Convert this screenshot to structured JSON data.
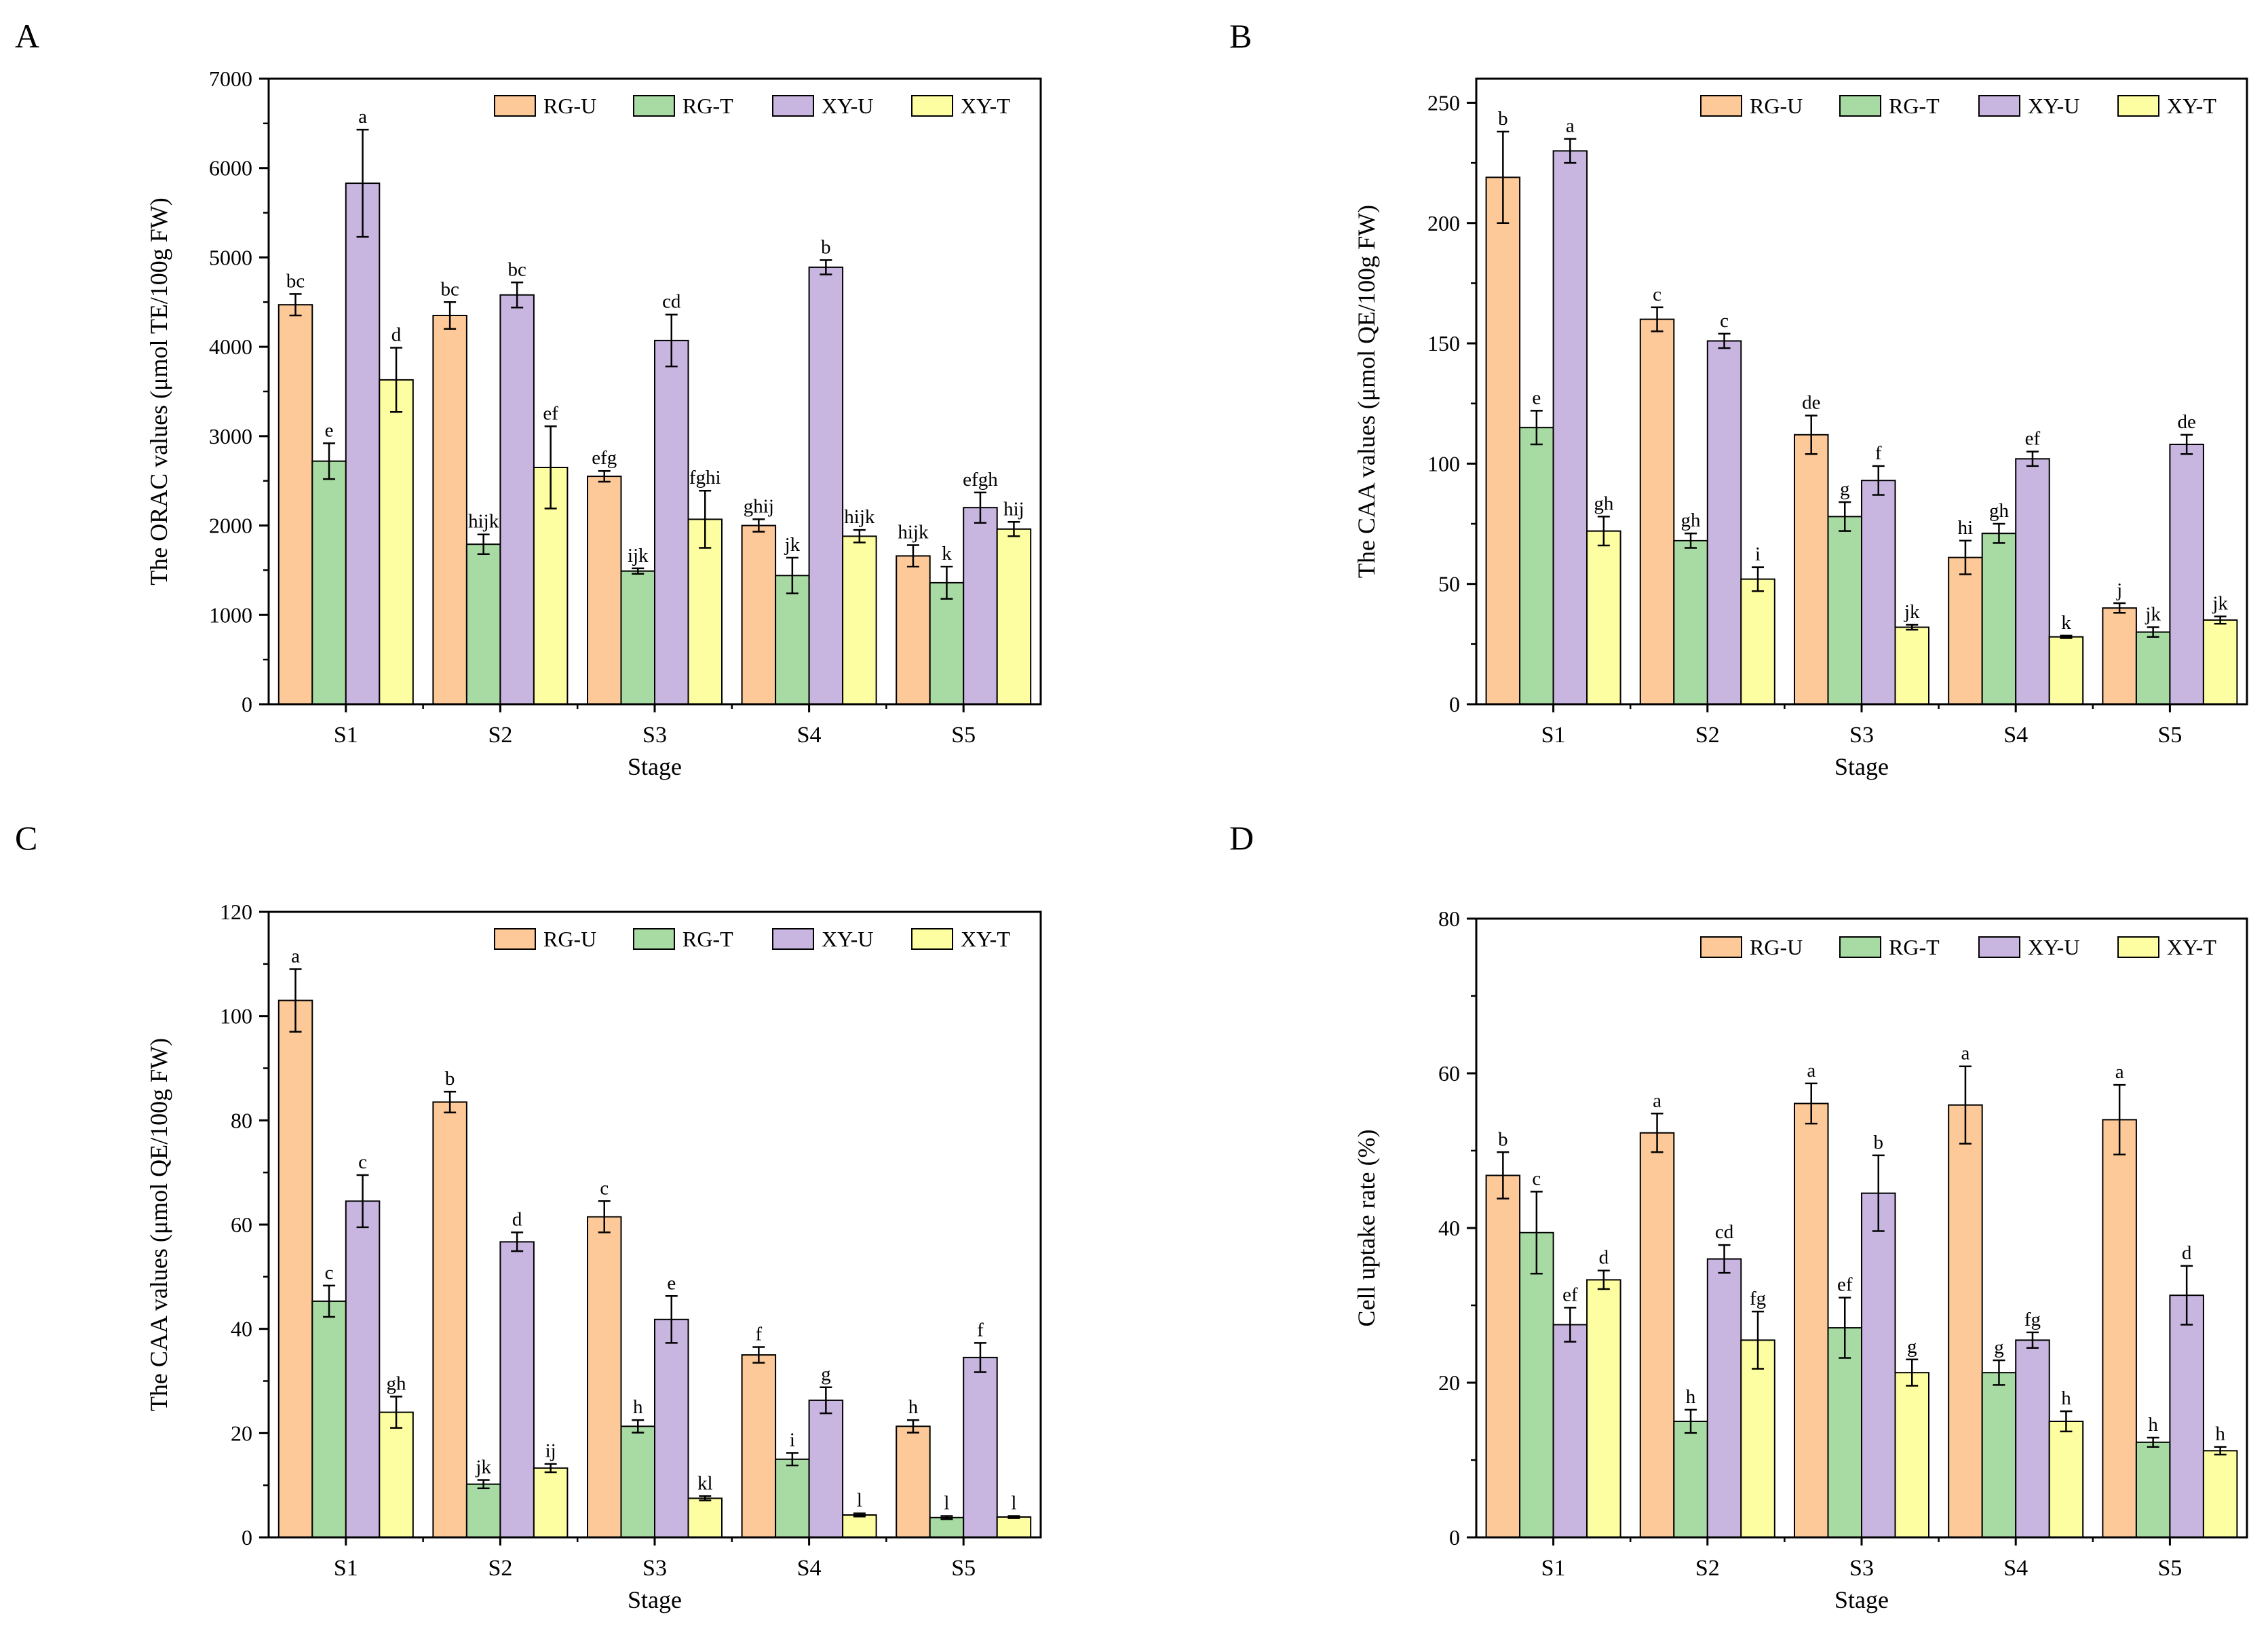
{
  "colors": {
    "RG-U": "#FDC998",
    "RG-T": "#A8DBA4",
    "XY-U": "#C8B6E1",
    "XY-T": "#FDFDA1",
    "bar_stroke": "#000000"
  },
  "panels": [
    {
      "letter": "A",
      "chart_data": {
        "type": "bar",
        "title": "",
        "xlabel": "Stage",
        "ylabel": "The ORAC values (μmol TE/100g FW)",
        "ylim": [
          0,
          7000
        ],
        "yticks": [
          0,
          1000,
          2000,
          3000,
          4000,
          5000,
          6000,
          7000
        ],
        "categories": [
          "S1",
          "S2",
          "S3",
          "S4",
          "S5"
        ],
        "legend_position": "top-right",
        "series": [
          {
            "name": "RG-U",
            "values": [
              4470,
              4350,
              2550,
              2000,
              1660
            ],
            "errors": [
              120,
              150,
              60,
              70,
              120
            ],
            "letters": [
              "bc",
              "bc",
              "efg",
              "ghij",
              "hijk"
            ]
          },
          {
            "name": "RG-T",
            "values": [
              2720,
              1790,
              1490,
              1440,
              1360
            ],
            "errors": [
              200,
              110,
              30,
              200,
              180
            ],
            "letters": [
              "e",
              "hijk",
              "ijk",
              "jk",
              "k"
            ]
          },
          {
            "name": "XY-U",
            "values": [
              5830,
              4580,
              4070,
              4890,
              2200
            ],
            "errors": [
              600,
              140,
              290,
              80,
              170
            ],
            "letters": [
              "a",
              "bc",
              "cd",
              "b",
              "efgh"
            ]
          },
          {
            "name": "XY-T",
            "values": [
              3630,
              2650,
              2070,
              1880,
              1960
            ],
            "errors": [
              360,
              460,
              320,
              70,
              80
            ],
            "letters": [
              "d",
              "ef",
              "fghi",
              "hijk",
              "hij"
            ]
          }
        ]
      }
    },
    {
      "letter": "B",
      "chart_data": {
        "type": "bar",
        "title": "",
        "xlabel": "Stage",
        "ylabel": "The CAA values (μmol QE/100g FW)",
        "ylim": [
          0,
          260
        ],
        "yticks": [
          0,
          50,
          100,
          150,
          200,
          250
        ],
        "categories": [
          "S1",
          "S2",
          "S3",
          "S4",
          "S5"
        ],
        "legend_position": "top-right",
        "series": [
          {
            "name": "RG-U",
            "values": [
              219,
              160,
              112,
              61,
              40
            ],
            "errors": [
              19,
              5,
              8,
              7,
              2
            ],
            "letters": [
              "b",
              "c",
              "de",
              "hi",
              "j"
            ]
          },
          {
            "name": "RG-T",
            "values": [
              115,
              68,
              78,
              71,
              30
            ],
            "errors": [
              7,
              3,
              6,
              4,
              2
            ],
            "letters": [
              "e",
              "gh",
              "g",
              "gh",
              "jk"
            ]
          },
          {
            "name": "XY-U",
            "values": [
              230,
              151,
              93,
              102,
              108
            ],
            "errors": [
              5,
              3,
              6,
              3,
              4
            ],
            "letters": [
              "a",
              "c",
              "f",
              "ef",
              "de"
            ]
          },
          {
            "name": "XY-T",
            "values": [
              72,
              52,
              32,
              28,
              35
            ],
            "errors": [
              6,
              5,
              1,
              0.5,
              1.5
            ],
            "letters": [
              "gh",
              "i",
              "jk",
              "k",
              "jk"
            ]
          }
        ]
      }
    },
    {
      "letter": "C",
      "chart_data": {
        "type": "bar",
        "title": "",
        "xlabel": "Stage",
        "ylabel": "The CAA values (μmol QE/100g FW)",
        "ylim": [
          0,
          120
        ],
        "yticks": [
          0,
          20,
          40,
          60,
          80,
          100,
          120
        ],
        "categories": [
          "S1",
          "S2",
          "S3",
          "S4",
          "S5"
        ],
        "legend_position": "top-right",
        "series": [
          {
            "name": "RG-U",
            "values": [
              103,
              83.5,
              61.5,
              35,
              21.3
            ],
            "errors": [
              6,
              2,
              3,
              1.5,
              1.2
            ],
            "letters": [
              "a",
              "b",
              "c",
              "f",
              "h"
            ]
          },
          {
            "name": "RG-T",
            "values": [
              45.3,
              10.2,
              21.3,
              15,
              3.8
            ],
            "errors": [
              3,
              0.8,
              1.2,
              1.2,
              0.3
            ],
            "letters": [
              "c",
              "jk",
              "h",
              "i",
              "l"
            ]
          },
          {
            "name": "XY-U",
            "values": [
              64.5,
              56.7,
              41.8,
              26.3,
              34.5
            ],
            "errors": [
              5,
              1.8,
              4.5,
              2.5,
              2.8
            ],
            "letters": [
              "c",
              "d",
              "e",
              "g",
              "f"
            ]
          },
          {
            "name": "XY-T",
            "values": [
              24,
              13.3,
              7.5,
              4.3,
              3.9
            ],
            "errors": [
              3,
              0.8,
              0.4,
              0.3,
              0.2
            ],
            "letters": [
              "gh",
              "ij",
              "kl",
              "l",
              "l"
            ]
          }
        ]
      }
    },
    {
      "letter": "D",
      "chart_data": {
        "type": "bar",
        "title": "",
        "xlabel": "Stage",
        "ylabel": "Cell uptake rate (%)",
        "ylim": [
          0,
          80
        ],
        "yticks": [
          0,
          20,
          40,
          60,
          80
        ],
        "categories": [
          "S1",
          "S2",
          "S3",
          "S4",
          "S5"
        ],
        "legend_position": "top-right",
        "series": [
          {
            "name": "RG-U",
            "values": [
              46.8,
              52.3,
              56.1,
              55.9,
              54
            ],
            "errors": [
              3,
              2.5,
              2.6,
              5,
              4.5
            ],
            "letters": [
              "b",
              "a",
              "a",
              "a",
              "a"
            ]
          },
          {
            "name": "RG-T",
            "values": [
              39.4,
              15,
              27.1,
              21.3,
              12.3
            ],
            "errors": [
              5.3,
              1.5,
              3.9,
              1.6,
              0.6
            ],
            "letters": [
              "c",
              "h",
              "ef",
              "g",
              "h"
            ]
          },
          {
            "name": "XY-U",
            "values": [
              27.5,
              36,
              44.5,
              25.5,
              31.3
            ],
            "errors": [
              2.2,
              1.8,
              4.9,
              1,
              3.8
            ],
            "letters": [
              "ef",
              "cd",
              "b",
              "fg",
              "d"
            ]
          },
          {
            "name": "XY-T",
            "values": [
              33.3,
              25.5,
              21.3,
              15,
              11.2
            ],
            "errors": [
              1.2,
              3.7,
              1.7,
              1.3,
              0.5
            ],
            "letters": [
              "d",
              "fg",
              "g",
              "h",
              "h"
            ]
          }
        ]
      }
    }
  ]
}
